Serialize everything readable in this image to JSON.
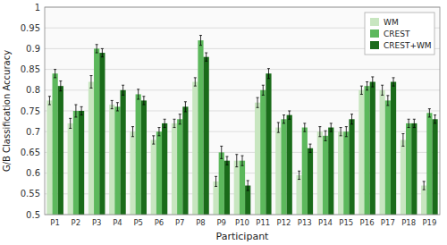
{
  "chart_data": {
    "type": "bar",
    "x_label": "Participant",
    "y_label": "G/B Classification Accuracy",
    "categories": [
      "P1",
      "P2",
      "P3",
      "P4",
      "P5",
      "P6",
      "P7",
      "P8",
      "P9",
      "P10",
      "P11",
      "P12",
      "P13",
      "P14",
      "P15",
      "P16",
      "P17",
      "P18",
      "P19"
    ],
    "series": [
      {
        "name": "WM",
        "color": "#c8e6c0",
        "values": [
          0.775,
          0.72,
          0.82,
          0.765,
          0.7,
          0.68,
          0.72,
          0.82,
          0.58,
          0.63,
          0.77,
          0.71,
          0.595,
          0.7,
          0.7,
          0.8,
          0.8,
          0.68,
          0.57
        ],
        "errors": [
          0.01,
          0.012,
          0.015,
          0.01,
          0.012,
          0.01,
          0.01,
          0.01,
          0.012,
          0.015,
          0.012,
          0.012,
          0.01,
          0.012,
          0.01,
          0.01,
          0.012,
          0.015,
          0.01
        ]
      },
      {
        "name": "CREST",
        "color": "#5cb85c",
        "values": [
          0.84,
          0.75,
          0.9,
          0.76,
          0.79,
          0.7,
          0.73,
          0.92,
          0.65,
          0.63,
          0.8,
          0.73,
          0.71,
          0.69,
          0.7,
          0.81,
          0.775,
          0.72,
          0.745
        ],
        "errors": [
          0.01,
          0.015,
          0.01,
          0.01,
          0.012,
          0.01,
          0.012,
          0.012,
          0.015,
          0.012,
          0.012,
          0.01,
          0.01,
          0.012,
          0.012,
          0.01,
          0.012,
          0.01,
          0.01
        ]
      },
      {
        "name": "CREST+WM",
        "color": "#1a6b1a",
        "values": [
          0.81,
          0.75,
          0.89,
          0.8,
          0.775,
          0.72,
          0.76,
          0.88,
          0.63,
          0.57,
          0.84,
          0.74,
          0.66,
          0.71,
          0.73,
          0.82,
          0.82,
          0.72,
          0.73
        ],
        "errors": [
          0.012,
          0.01,
          0.01,
          0.012,
          0.01,
          0.01,
          0.012,
          0.01,
          0.01,
          0.012,
          0.012,
          0.01,
          0.01,
          0.01,
          0.012,
          0.012,
          0.01,
          0.01,
          0.01
        ]
      }
    ],
    "ylim": [
      0.5,
      1.0
    ],
    "yticks": [
      0.5,
      0.55,
      0.6,
      0.65,
      0.7,
      0.75,
      0.8,
      0.85,
      0.9,
      0.95,
      1
    ],
    "grid": true,
    "legend": "upper right"
  }
}
